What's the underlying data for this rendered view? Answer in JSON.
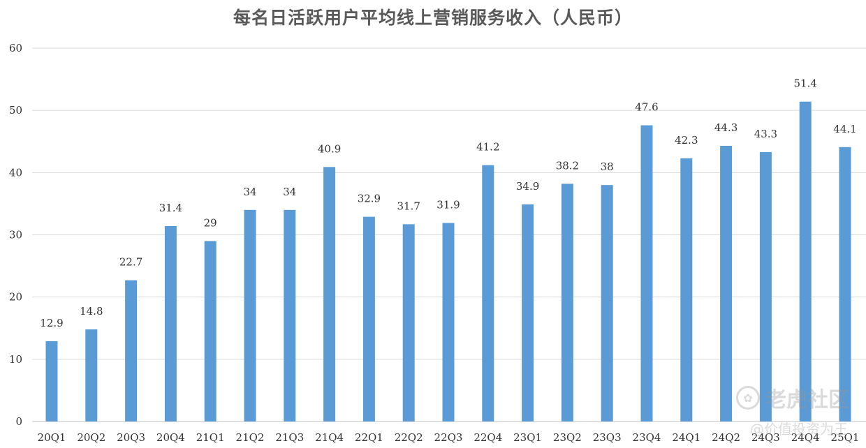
{
  "chart_data": {
    "type": "bar",
    "title": "每名日活跃用户平均线上营销服务收入（人民币）",
    "xlabel": "",
    "ylabel": "",
    "ylim": [
      0,
      60
    ],
    "yticks": [
      "0",
      "10",
      "20",
      "30",
      "40",
      "50",
      "60"
    ],
    "grid": true,
    "bar_color": "#5B9BD5",
    "categories": [
      "20Q1",
      "20Q2",
      "20Q3",
      "20Q4",
      "21Q1",
      "21Q2",
      "21Q3",
      "21Q4",
      "22Q1",
      "22Q2",
      "22Q3",
      "22Q4",
      "23Q1",
      "23Q2",
      "23Q3",
      "23Q4",
      "24Q1",
      "24Q2",
      "24Q3",
      "24Q4",
      "25Q1"
    ],
    "values": [
      12.9,
      14.8,
      22.7,
      31.4,
      29,
      34,
      34,
      40.9,
      32.9,
      31.7,
      31.9,
      41.2,
      34.9,
      38.2,
      38,
      47.6,
      42.3,
      44.3,
      43.3,
      51.4,
      44.1
    ],
    "value_labels": [
      "12.9",
      "14.8",
      "22.7",
      "31.4",
      "29",
      "34",
      "34",
      "40.9",
      "32.9",
      "31.7",
      "31.9",
      "41.2",
      "34.9",
      "38.2",
      "38",
      "47.6",
      "42.3",
      "44.3",
      "43.3",
      "51.4",
      "44.1"
    ]
  },
  "watermark": {
    "main": "老虎社区",
    "sub": "@价值投资为王",
    "icon": "tiger-logo-icon"
  }
}
